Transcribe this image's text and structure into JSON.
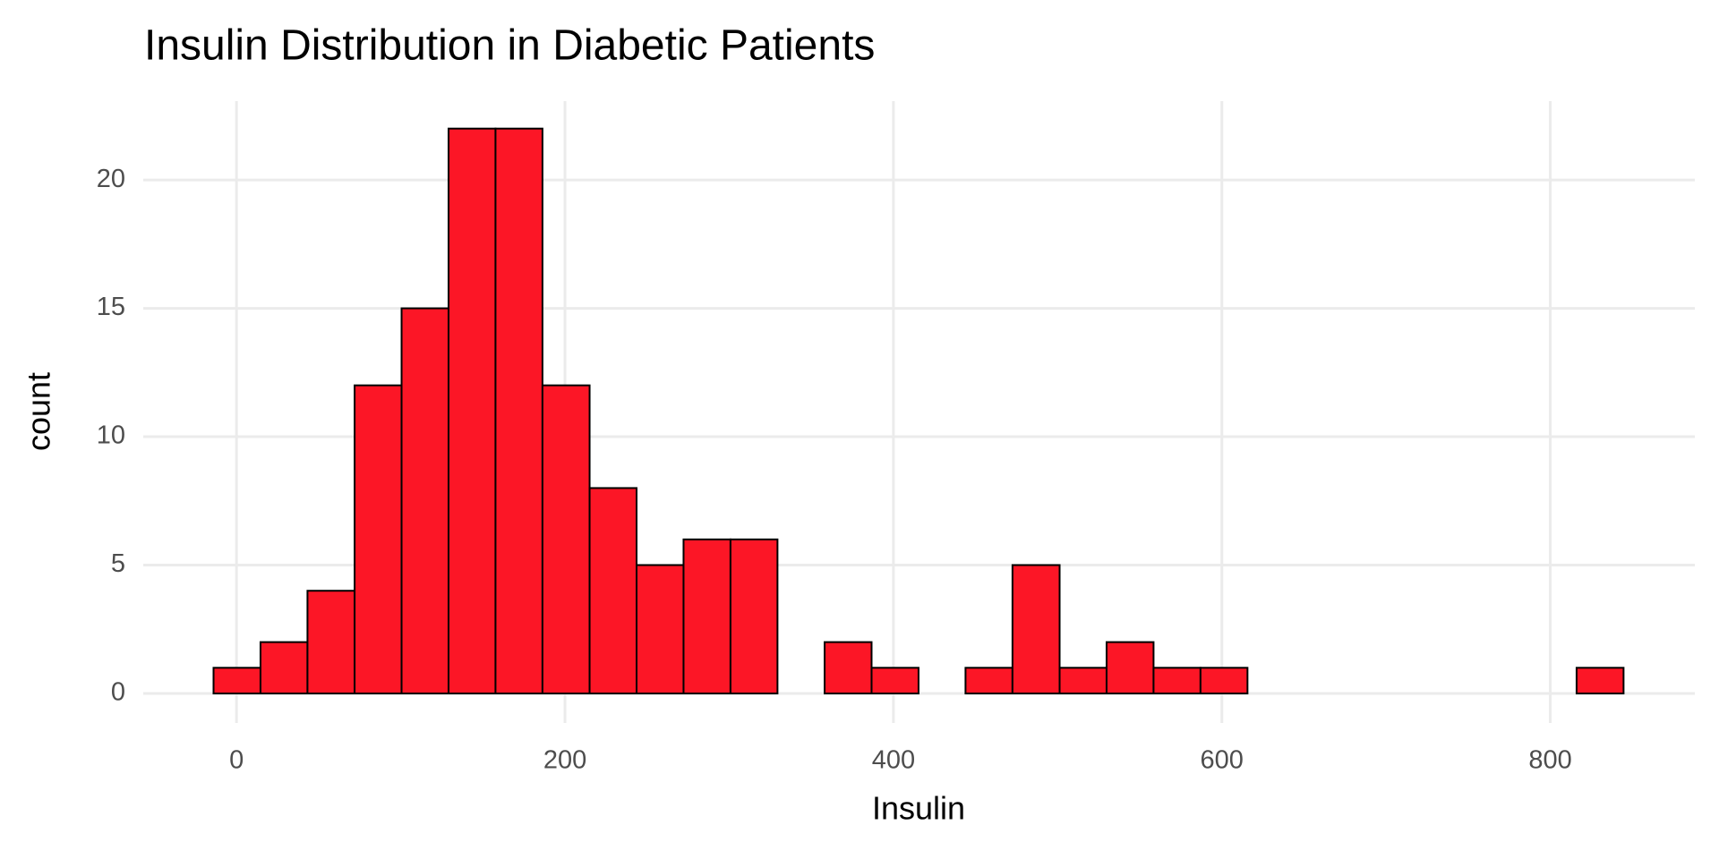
{
  "chart_data": {
    "type": "histogram",
    "title": "Insulin Distribution in Diabetic Patients",
    "x_label": "Insulin",
    "y_label": "count",
    "bins": [
      -14,
      14.6,
      43.2,
      71.9,
      100.5,
      129.1,
      157.7,
      186.3,
      215.0,
      243.6,
      272.2,
      300.8,
      329.4,
      358.1,
      386.7,
      415.3,
      443.9,
      472.5,
      501.2,
      529.8,
      558.4,
      587.0,
      615.6,
      644.3,
      672.9,
      701.5,
      730.1,
      758.7,
      787.4,
      816.0,
      844.6
    ],
    "values": [
      1,
      2,
      4,
      12,
      15,
      22,
      22,
      12,
      8,
      5,
      6,
      6,
      0,
      2,
      1,
      0,
      1,
      5,
      1,
      2,
      1,
      1,
      0,
      0,
      0,
      0,
      0,
      0,
      0,
      1
    ],
    "color": "#fc1626",
    "edgecolor": "#000000",
    "xlim": [
      -56.8,
      888
    ],
    "xticks": [
      0,
      200,
      400,
      600,
      800
    ],
    "ylim": [
      -1.15,
      23.07
    ],
    "yticks": [
      0,
      5,
      10,
      15,
      20
    ],
    "grid": true
  }
}
